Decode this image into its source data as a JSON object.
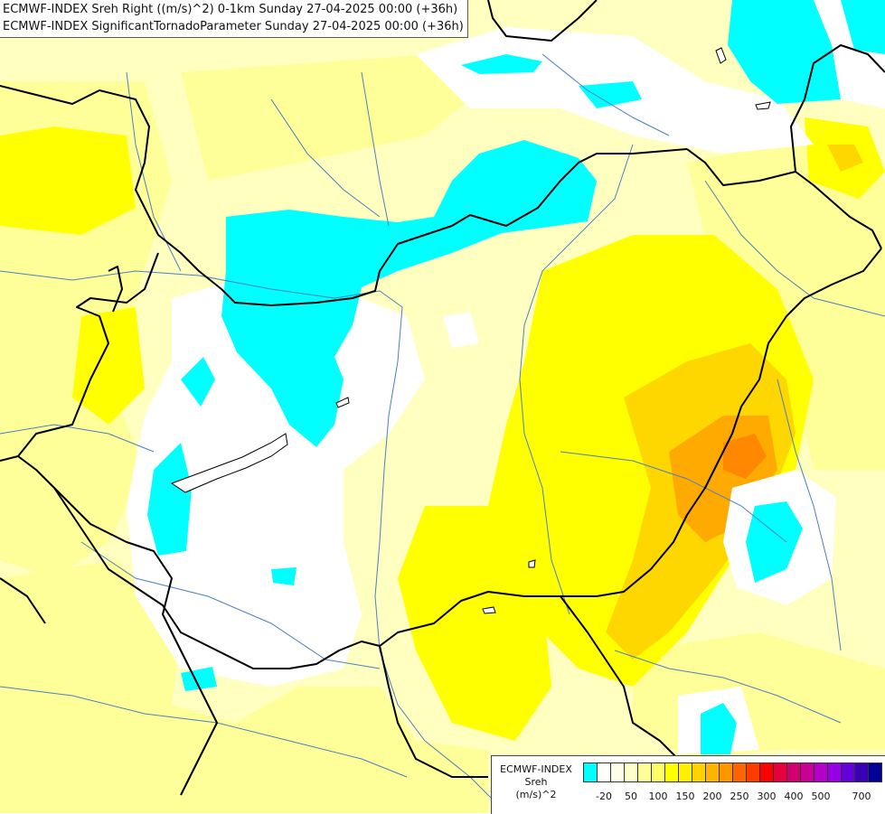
{
  "header": {
    "line1": "ECMWF-INDEX Sreh Right ((m/s)^2) 0-1km Sunday 27-04-2025 00:00 (+36h)",
    "line2": "ECMWF-INDEX SignificantTornadoParameter Sunday 27-04-2025 00:00 (+36h)"
  },
  "legend": {
    "source": "ECMWF-INDEX",
    "variable": "Sreh",
    "unit": "(m/s)^2",
    "swatch_colors": [
      "#00ffff",
      "#ffffff",
      "#ffffe8",
      "#ffffc8",
      "#ffff9a",
      "#ffff64",
      "#ffff00",
      "#fff000",
      "#ffd200",
      "#ffb400",
      "#ff9600",
      "#ff6400",
      "#ff3c00",
      "#ff0000",
      "#e6003c",
      "#d2006e",
      "#c80096",
      "#b400c8",
      "#9600e6",
      "#6400dc",
      "#3c00b4",
      "#000096"
    ],
    "tick_labels": [
      "-20",
      "50",
      "100",
      "150",
      "200",
      "250",
      "300",
      "400",
      "500",
      "700"
    ]
  },
  "colors": {
    "cyan": "#00ffff",
    "white": "#ffffff",
    "pale_yellow": "#ffffc0",
    "light_yellow": "#ffff99",
    "yellow": "#ffff00",
    "gold": "#ffd700",
    "orange": "#ffaa00",
    "deep_orange": "#ff8800",
    "border": "#000000",
    "river": "#4a7fc0"
  }
}
